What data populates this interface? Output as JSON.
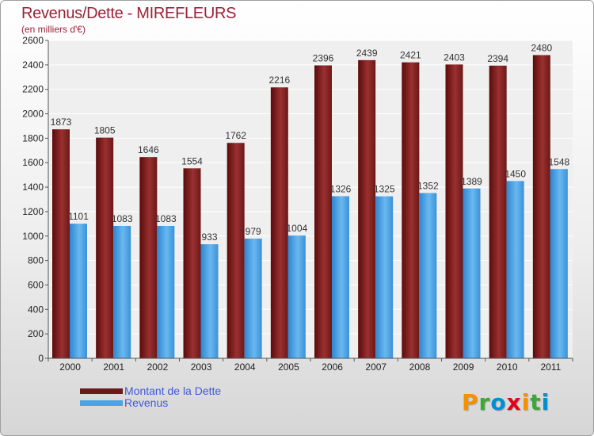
{
  "header": {
    "title": "Revenus/Dette - MIREFLEURS",
    "subtitle": "(en milliers d'€)"
  },
  "legend": {
    "items": [
      {
        "label": "Montant de la Dette",
        "color": "#6b1a1a"
      },
      {
        "label": "Revenus",
        "color": "#4aa3e8"
      }
    ]
  },
  "logo": {
    "letters": [
      "P",
      "r",
      "o",
      "x",
      "i",
      "t",
      "i"
    ],
    "colors": [
      "#f39200",
      "#3aaa35",
      "#0090d0",
      "#e2001a",
      "#f39200",
      "#3aaa35",
      "#0090d0"
    ]
  },
  "chart_data": {
    "type": "bar",
    "categories": [
      "2000",
      "2001",
      "2002",
      "2003",
      "2004",
      "2005",
      "2006",
      "2007",
      "2008",
      "2009",
      "2010",
      "2011"
    ],
    "series": [
      {
        "name": "Montant de la Dette",
        "values": [
          1873,
          1805,
          1646,
          1554,
          1762,
          2216,
          2396,
          2439,
          2421,
          2403,
          2394,
          2480
        ],
        "color": "#6b1a1a"
      },
      {
        "name": "Revenus",
        "values": [
          1101,
          1083,
          1083,
          933,
          979,
          1004,
          1326,
          1325,
          1352,
          1389,
          1450,
          1548
        ],
        "color": "#4aa3e8"
      }
    ],
    "ylim": [
      0,
      2600
    ],
    "yticks": [
      0,
      200,
      400,
      600,
      800,
      1000,
      1200,
      1400,
      1600,
      1800,
      2000,
      2200,
      2400,
      2600
    ],
    "grid": true,
    "legend_position": "bottom-left"
  }
}
